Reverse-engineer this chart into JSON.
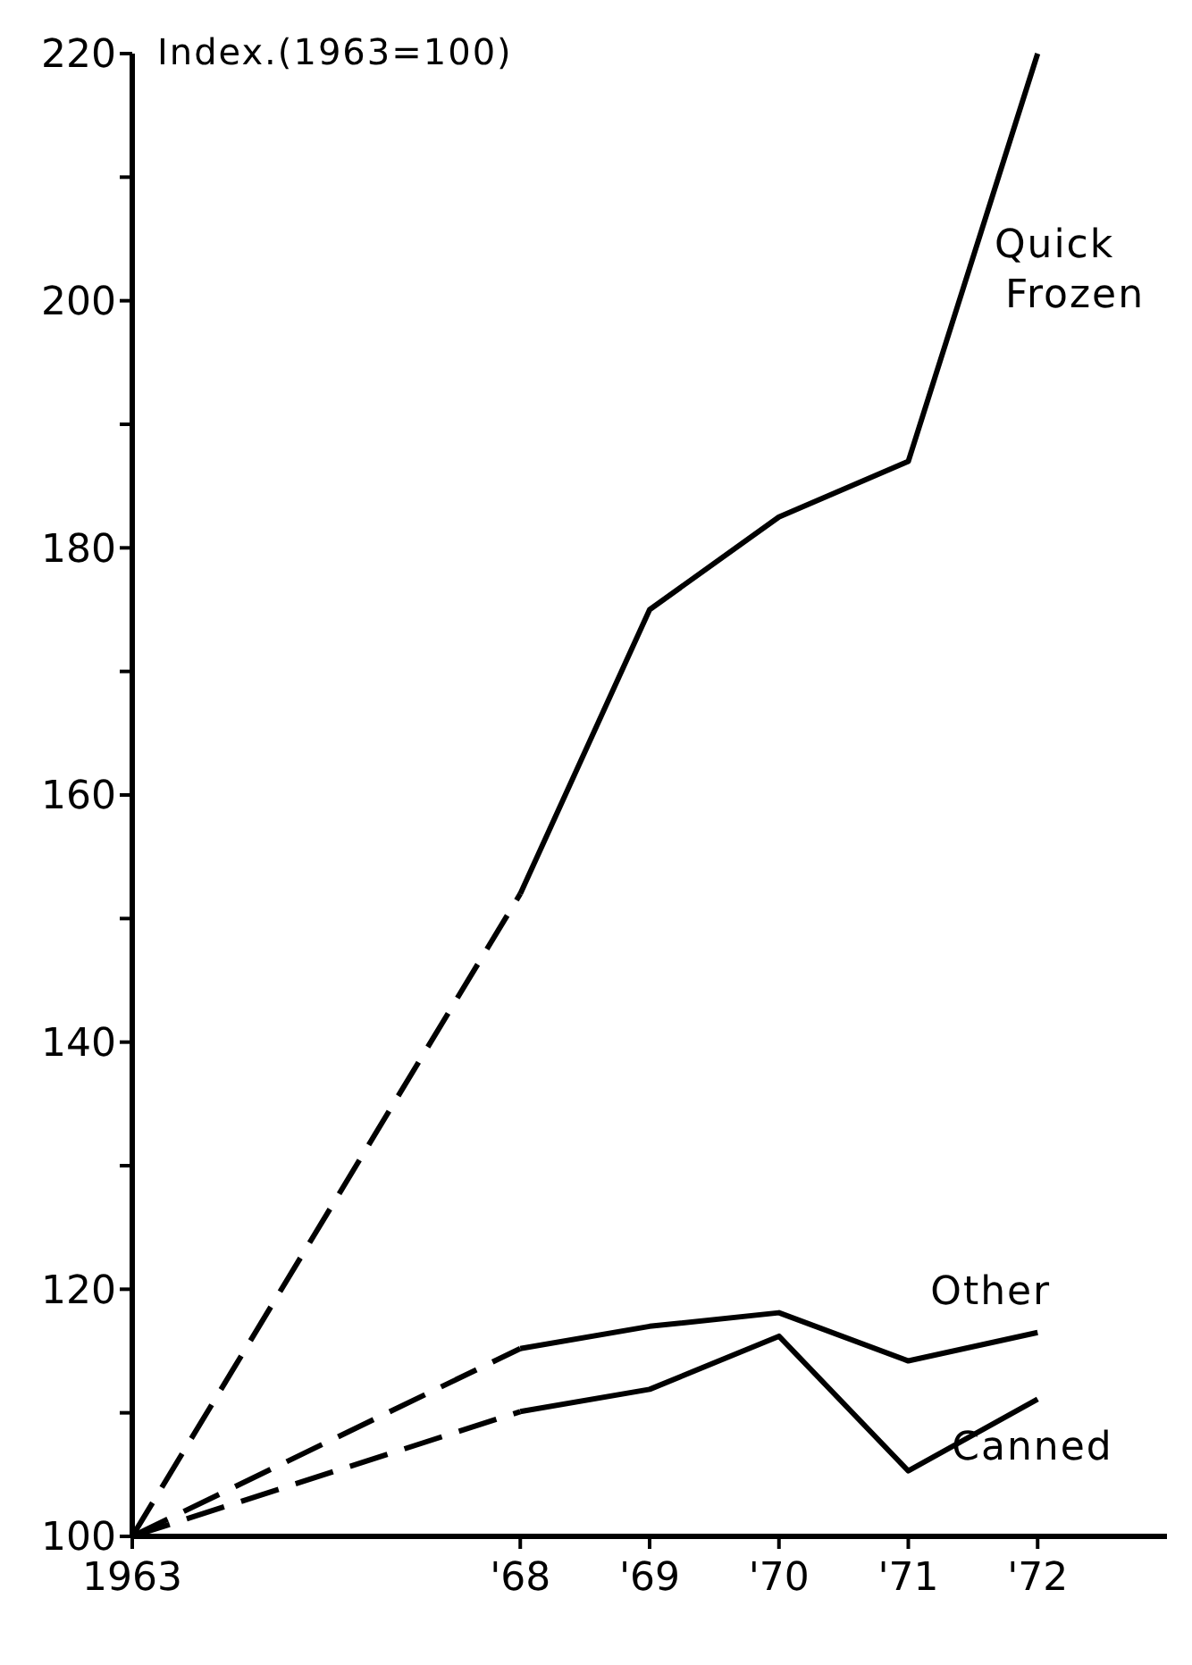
{
  "chart_data": {
    "type": "line",
    "ylabel": "Index.(1963=100)",
    "categories": [
      "1963",
      null,
      null,
      "'68",
      "'69",
      "'70",
      "'71",
      "'72",
      null
    ],
    "ylim": [
      100,
      220
    ],
    "yticks": [
      100,
      {
        "value": 110,
        "label": null
      },
      120,
      {
        "value": 130,
        "label": null
      },
      140,
      {
        "value": 150,
        "label": null
      },
      160,
      {
        "value": 170,
        "label": null
      },
      180,
      {
        "value": 190,
        "label": null
      },
      200,
      {
        "value": 210,
        "label": null
      },
      220
    ],
    "grid": false,
    "legend": false,
    "marker": "none",
    "series": [
      {
        "color": "#000000",
        "line_style": "dashed",
        "values": [
          100,
          null,
          null,
          152,
          null,
          null,
          null,
          null,
          null
        ]
      },
      {
        "name": "Quick Frozen",
        "color": "#000000",
        "line_style": "solid",
        "values": [
          null,
          null,
          null,
          152,
          175,
          182.5,
          187,
          220,
          null
        ]
      },
      {
        "color": "#000000",
        "line_style": "dashed",
        "values": [
          100,
          null,
          null,
          115.2,
          null,
          null,
          null,
          null,
          null
        ]
      },
      {
        "name": "Other",
        "color": "#000000",
        "line_style": "solid",
        "values": [
          null,
          null,
          null,
          115.2,
          117,
          118.1,
          114.2,
          116.5,
          null
        ]
      },
      {
        "color": "#000000",
        "line_style": "dashed",
        "values": [
          100,
          null,
          null,
          110.1,
          null,
          null,
          null,
          null,
          null
        ]
      },
      {
        "name": "Canned",
        "color": "#000000",
        "line_style": "solid",
        "values": [
          null,
          null,
          null,
          110.1,
          111.9,
          116.2,
          105.3,
          111.1,
          null
        ]
      }
    ]
  }
}
